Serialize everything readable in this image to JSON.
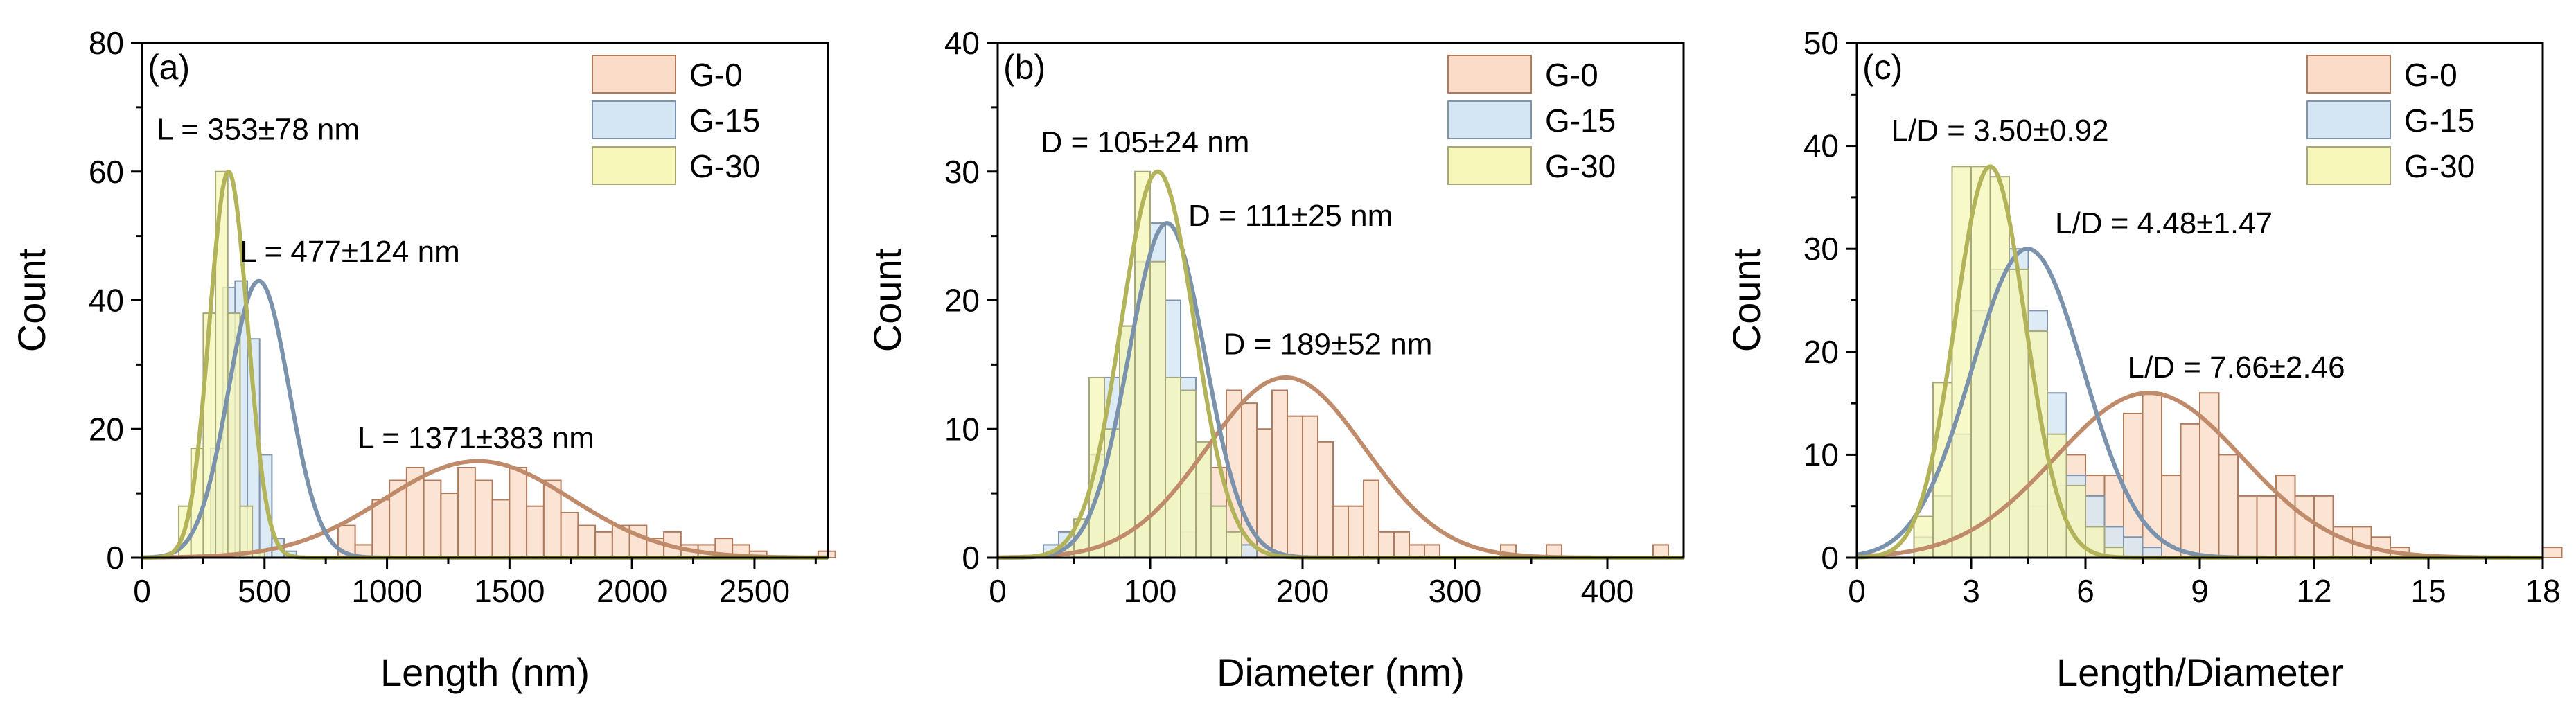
{
  "colors": {
    "G-0_fill": "#fbdcc8",
    "G-0_stroke": "#b07a5c",
    "G-0_curve": "#c08b6a",
    "G-15_fill": "#d4e6f4",
    "G-15_stroke": "#7f93aa",
    "G-15_curve": "#7b92ad",
    "G-30_fill": "#f6f7b8",
    "G-30_stroke": "#a7a779",
    "G-30_curve": "#b3b35a",
    "axis": "#000000"
  },
  "chart_data": [
    {
      "type": "bar",
      "panel_label": "(a)",
      "xlabel": "Length (nm)",
      "ylabel": "Count",
      "xlim": [
        0,
        2800
      ],
      "ylim": [
        0,
        80
      ],
      "xticks": [
        "0",
        "500",
        "1000",
        "1500",
        "2000",
        "2500"
      ],
      "yticks": [
        "0",
        "20",
        "40",
        "60",
        "80"
      ],
      "legend": [
        "G-0",
        "G-15",
        "G-30"
      ],
      "legend_position": "top-right",
      "series": [
        {
          "name": "G-0",
          "bin_start": 800,
          "bin_width": 70,
          "values": [
            5,
            2,
            9,
            12,
            14,
            12,
            10,
            14,
            12,
            9,
            14,
            8,
            12,
            7,
            5,
            4,
            5,
            5,
            3,
            4,
            2,
            2,
            3,
            2,
            1,
            0,
            0,
            0,
            1
          ],
          "fit": {
            "mean": 1371,
            "sd": 383,
            "peak": 15
          }
        },
        {
          "name": "G-15",
          "bin_start": 280,
          "bin_width": 50,
          "values": [
            17,
            42,
            43,
            34,
            16,
            3,
            1
          ],
          "fit": {
            "mean": 477,
            "sd": 124,
            "peak": 43
          }
        },
        {
          "name": "G-30",
          "bin_start": 150,
          "bin_width": 50,
          "values": [
            8,
            17,
            38,
            60,
            38,
            8,
            1
          ],
          "fit": {
            "mean": 353,
            "sd": 78,
            "peak": 60
          }
        }
      ],
      "annotations": [
        {
          "text": "L = 353±78 nm",
          "x": 60,
          "y": 65
        },
        {
          "text": "L = 477±124 nm",
          "x": 400,
          "y": 46
        },
        {
          "text": "L = 1371±383 nm",
          "x": 880,
          "y": 17
        }
      ]
    },
    {
      "type": "bar",
      "panel_label": "(b)",
      "xlabel": "Diameter (nm)",
      "ylabel": "Count",
      "xlim": [
        0,
        450
      ],
      "ylim": [
        0,
        40
      ],
      "xticks": [
        "0",
        "100",
        "200",
        "300",
        "400"
      ],
      "yticks": [
        "0",
        "10",
        "20",
        "30",
        "40"
      ],
      "legend": [
        "G-0",
        "G-15",
        "G-30"
      ],
      "legend_position": "top-right",
      "series": [
        {
          "name": "G-0",
          "bin_start": 120,
          "bin_width": 10,
          "values": [
            2,
            5,
            7,
            13,
            12,
            10,
            13,
            11,
            11,
            9,
            4,
            4,
            6,
            2,
            2,
            1,
            1,
            0,
            0,
            0,
            0,
            1,
            0,
            0,
            1,
            0,
            0,
            0,
            0,
            0,
            0,
            1
          ],
          "fit": {
            "mean": 189,
            "sd": 52,
            "peak": 14
          }
        },
        {
          "name": "G-15",
          "bin_start": 30,
          "bin_width": 10,
          "values": [
            1,
            2,
            3,
            8,
            14,
            18,
            23,
            26,
            20,
            14,
            9,
            4,
            2,
            1
          ],
          "fit": {
            "mean": 111,
            "sd": 25,
            "peak": 26
          }
        },
        {
          "name": "G-30",
          "bin_start": 40,
          "bin_width": 10,
          "values": [
            1,
            3,
            14,
            10,
            18,
            30,
            23,
            14,
            13,
            9,
            4,
            2
          ],
          "fit": {
            "mean": 105,
            "sd": 24,
            "peak": 30
          }
        }
      ],
      "annotations": [
        {
          "text": "D = 105±24 nm",
          "x": 28,
          "y": 31.5
        },
        {
          "text": "D = 111±25 nm",
          "x": 125,
          "y": 25.8
        },
        {
          "text": "D = 189±52 nm",
          "x": 148,
          "y": 15.8
        }
      ]
    },
    {
      "type": "bar",
      "panel_label": "(c)",
      "xlabel": "Length/Diameter",
      "ylabel": "Count",
      "xlim": [
        0,
        18
      ],
      "ylim": [
        0,
        50
      ],
      "xticks": [
        "0",
        "3",
        "6",
        "9",
        "12",
        "15",
        "18"
      ],
      "yticks": [
        "0",
        "10",
        "20",
        "30",
        "40",
        "50"
      ],
      "legend": [
        "G-0",
        "G-15",
        "G-30"
      ],
      "legend_position": "top-right",
      "series": [
        {
          "name": "G-0",
          "bin_start": 4.5,
          "bin_width": 0.5,
          "values": [
            5,
            7,
            10,
            8,
            8,
            14,
            16,
            8,
            13,
            16,
            10,
            6,
            6,
            8,
            6,
            6,
            3,
            3,
            2,
            1,
            0,
            0,
            0,
            0,
            0,
            0,
            0,
            1
          ],
          "fit": {
            "mean": 7.66,
            "sd": 2.46,
            "peak": 16
          }
        },
        {
          "name": "G-15",
          "bin_start": 1.5,
          "bin_width": 0.5,
          "values": [
            2,
            6,
            12,
            24,
            28,
            30,
            24,
            16,
            8,
            6,
            3,
            2,
            1
          ],
          "fit": {
            "mean": 4.48,
            "sd": 1.47,
            "peak": 30
          }
        },
        {
          "name": "G-30",
          "bin_start": 1.5,
          "bin_width": 0.5,
          "values": [
            4,
            17,
            38,
            38,
            37,
            28,
            22,
            12,
            7,
            3,
            1
          ],
          "fit": {
            "mean": 3.5,
            "sd": 0.92,
            "peak": 38
          }
        }
      ],
      "annotations": [
        {
          "text": "L/D = 3.50±0.92",
          "x": 0.9,
          "y": 40.5
        },
        {
          "text": "L/D = 4.48±1.47",
          "x": 5.2,
          "y": 31.5
        },
        {
          "text": "L/D = 7.66±2.46",
          "x": 7.1,
          "y": 17.5
        }
      ]
    }
  ]
}
